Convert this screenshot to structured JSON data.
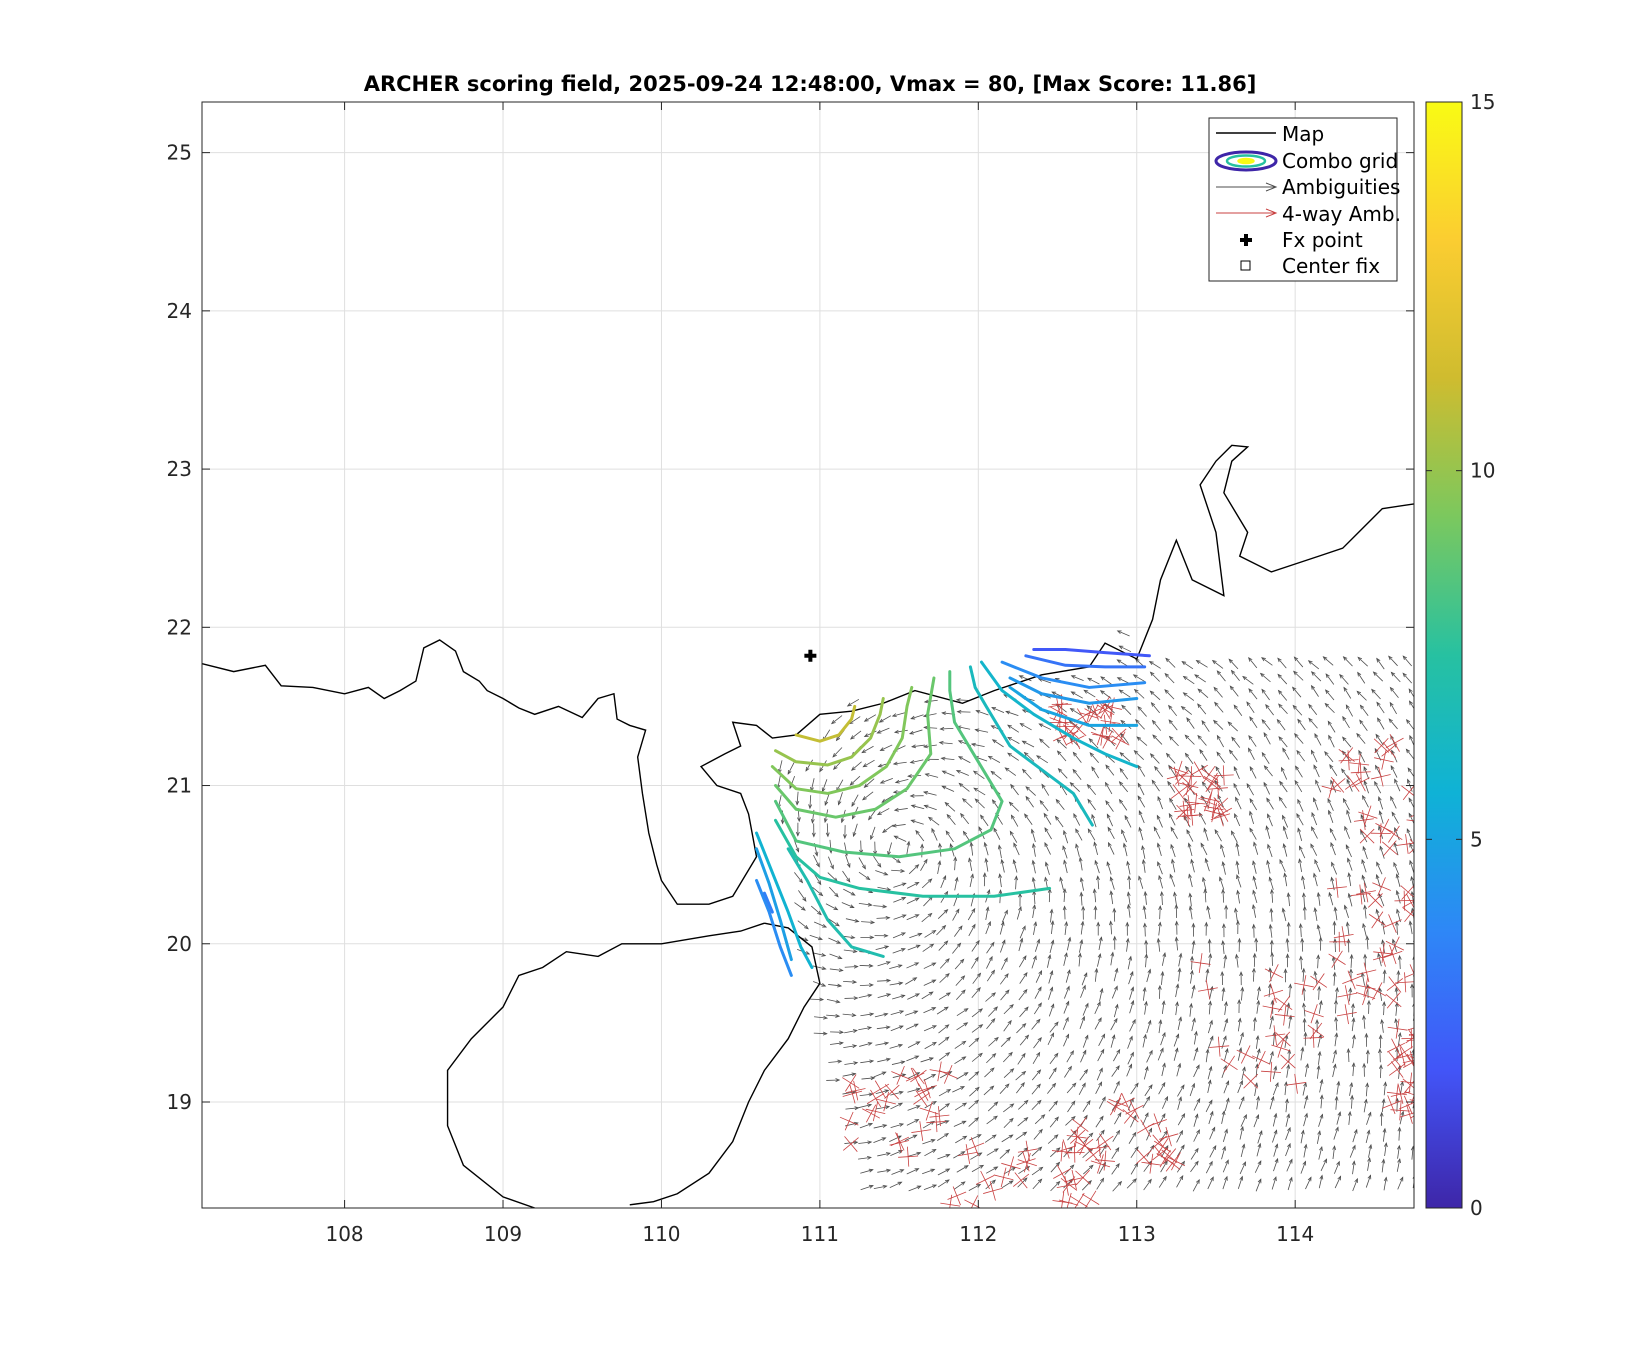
{
  "chart_data": {
    "type": "contour-map",
    "title": "ARCHER scoring field, 2025-09-24 12:48:00, Vmax = 80, [Max Score: 11.86]",
    "xlabel": "",
    "ylabel": "",
    "xlim": [
      107.1,
      114.75
    ],
    "ylim": [
      18.33,
      25.32
    ],
    "x_ticks": [
      108,
      109,
      110,
      111,
      112,
      113,
      114
    ],
    "y_ticks": [
      19,
      20,
      21,
      22,
      23,
      24,
      25
    ],
    "grid": true,
    "colorbar": {
      "range": [
        0,
        15
      ],
      "ticks": [
        0,
        5,
        10,
        15
      ],
      "colormap": [
        "#3e26a8",
        "#4255f8",
        "#2e87f7",
        "#0fb2d6",
        "#27c1a1",
        "#7bc85e",
        "#cfbc2f",
        "#fbcd31",
        "#f9fb14"
      ]
    },
    "legend": {
      "placement": "top-right",
      "entries": [
        {
          "label": "Map",
          "symbol": "line",
          "color": "#000000"
        },
        {
          "label": "Combo grid",
          "symbol": "contour",
          "color": "#3e26a8"
        },
        {
          "label": "Ambiguities",
          "symbol": "arrow",
          "color": "#555555"
        },
        {
          "label": "4-way Amb.",
          "symbol": "arrow",
          "color": "#cc3333"
        },
        {
          "label": "Fx point",
          "symbol": "plus",
          "color": "#000000"
        },
        {
          "label": "Center fix",
          "symbol": "square",
          "color": "#000000"
        }
      ]
    },
    "fx_point": {
      "lon": 110.94,
      "lat": 21.82
    },
    "coastlines": [
      [
        [
          107.1,
          21.77
        ],
        [
          107.3,
          21.72
        ],
        [
          107.5,
          21.76
        ],
        [
          107.6,
          21.63
        ],
        [
          107.8,
          21.62
        ],
        [
          108.0,
          21.58
        ],
        [
          108.15,
          21.62
        ],
        [
          108.25,
          21.55
        ],
        [
          108.35,
          21.6
        ],
        [
          108.45,
          21.66
        ],
        [
          108.5,
          21.87
        ],
        [
          108.6,
          21.92
        ],
        [
          108.7,
          21.85
        ],
        [
          108.75,
          21.72
        ],
        [
          108.85,
          21.66
        ],
        [
          108.9,
          21.6
        ],
        [
          109.0,
          21.55
        ],
        [
          109.1,
          21.49
        ],
        [
          109.2,
          21.45
        ],
        [
          109.35,
          21.5
        ],
        [
          109.5,
          21.43
        ],
        [
          109.6,
          21.55
        ],
        [
          109.7,
          21.58
        ],
        [
          109.72,
          21.42
        ],
        [
          109.8,
          21.38
        ],
        [
          109.9,
          21.35
        ],
        [
          109.85,
          21.18
        ],
        [
          109.88,
          20.95
        ],
        [
          109.92,
          20.7
        ],
        [
          109.97,
          20.5
        ],
        [
          110.0,
          20.4
        ],
        [
          110.1,
          20.25
        ],
        [
          110.3,
          20.25
        ],
        [
          110.45,
          20.3
        ],
        [
          110.6,
          20.55
        ],
        [
          110.55,
          20.82
        ],
        [
          110.5,
          20.95
        ],
        [
          110.35,
          21.0
        ],
        [
          110.25,
          21.12
        ],
        [
          110.4,
          21.2
        ],
        [
          110.5,
          21.25
        ],
        [
          110.45,
          21.4
        ],
        [
          110.6,
          21.38
        ],
        [
          110.7,
          21.3
        ],
        [
          110.85,
          21.32
        ],
        [
          111.0,
          21.45
        ],
        [
          111.2,
          21.47
        ],
        [
          111.4,
          21.52
        ],
        [
          111.6,
          21.6
        ],
        [
          111.9,
          21.52
        ],
        [
          112.1,
          21.6
        ],
        [
          112.4,
          21.7
        ],
        [
          112.7,
          21.75
        ],
        [
          112.8,
          21.9
        ],
        [
          113.0,
          21.8
        ],
        [
          113.1,
          22.05
        ],
        [
          113.15,
          22.3
        ],
        [
          113.25,
          22.55
        ],
        [
          113.35,
          22.3
        ],
        [
          113.55,
          22.2
        ],
        [
          113.5,
          22.6
        ],
        [
          113.4,
          22.9
        ],
        [
          113.5,
          23.05
        ],
        [
          113.6,
          23.15
        ],
        [
          113.7,
          23.14
        ],
        [
          113.6,
          23.05
        ],
        [
          113.55,
          22.85
        ],
        [
          113.7,
          22.6
        ],
        [
          113.65,
          22.45
        ],
        [
          113.85,
          22.35
        ],
        [
          114.0,
          22.4
        ],
        [
          114.15,
          22.45
        ],
        [
          114.3,
          22.5
        ],
        [
          114.4,
          22.6
        ],
        [
          114.55,
          22.75
        ],
        [
          114.75,
          22.78
        ]
      ],
      [
        [
          110.65,
          20.13
        ],
        [
          110.5,
          20.08
        ],
        [
          110.3,
          20.05
        ],
        [
          110.0,
          20.0
        ],
        [
          109.75,
          20.0
        ],
        [
          109.6,
          19.92
        ],
        [
          109.4,
          19.95
        ],
        [
          109.25,
          19.85
        ],
        [
          109.1,
          19.8
        ],
        [
          109.0,
          19.6
        ],
        [
          108.8,
          19.4
        ],
        [
          108.65,
          19.2
        ],
        [
          108.65,
          18.85
        ],
        [
          108.75,
          18.6
        ],
        [
          109.0,
          18.4
        ],
        [
          109.2,
          18.33
        ]
      ],
      [
        [
          110.65,
          20.13
        ],
        [
          110.8,
          20.1
        ],
        [
          110.95,
          19.98
        ],
        [
          111.0,
          19.75
        ],
        [
          110.9,
          19.6
        ],
        [
          110.8,
          19.4
        ],
        [
          110.65,
          19.2
        ],
        [
          110.55,
          19.0
        ],
        [
          110.45,
          18.75
        ],
        [
          110.3,
          18.55
        ],
        [
          110.1,
          18.42
        ],
        [
          109.95,
          18.37
        ],
        [
          109.8,
          18.35
        ]
      ]
    ],
    "contours": [
      {
        "level": 11.0,
        "points": [
          [
            110.85,
            21.32
          ],
          [
            111.0,
            21.28
          ],
          [
            111.12,
            21.32
          ],
          [
            111.2,
            21.42
          ],
          [
            111.22,
            21.5
          ]
        ]
      },
      {
        "level": 10.0,
        "points": [
          [
            110.72,
            21.22
          ],
          [
            110.85,
            21.15
          ],
          [
            111.05,
            21.13
          ],
          [
            111.2,
            21.18
          ],
          [
            111.32,
            21.3
          ],
          [
            111.38,
            21.45
          ],
          [
            111.4,
            21.55
          ]
        ]
      },
      {
        "level": 9.5,
        "points": [
          [
            110.7,
            21.12
          ],
          [
            110.85,
            20.98
          ],
          [
            111.05,
            20.95
          ],
          [
            111.25,
            21.0
          ],
          [
            111.42,
            21.12
          ],
          [
            111.52,
            21.3
          ],
          [
            111.55,
            21.5
          ],
          [
            111.58,
            21.62
          ]
        ]
      },
      {
        "level": 9.0,
        "points": [
          [
            110.72,
            21.0
          ],
          [
            110.85,
            20.85
          ],
          [
            111.1,
            20.8
          ],
          [
            111.35,
            20.85
          ],
          [
            111.55,
            20.98
          ],
          [
            111.7,
            21.2
          ],
          [
            111.68,
            21.45
          ],
          [
            111.72,
            21.68
          ]
        ]
      },
      {
        "level": 8.5,
        "points": [
          [
            110.72,
            20.9
          ],
          [
            110.85,
            20.65
          ],
          [
            111.15,
            20.58
          ],
          [
            111.5,
            20.55
          ],
          [
            111.85,
            20.6
          ],
          [
            112.08,
            20.72
          ],
          [
            112.15,
            20.9
          ],
          [
            112.0,
            21.15
          ],
          [
            111.85,
            21.4
          ],
          [
            111.82,
            21.6
          ],
          [
            111.82,
            21.72
          ]
        ]
      },
      {
        "level": 7.5,
        "points": [
          [
            110.72,
            20.78
          ],
          [
            110.85,
            20.55
          ],
          [
            111.0,
            20.42
          ],
          [
            111.25,
            20.35
          ],
          [
            111.65,
            20.3
          ],
          [
            112.1,
            20.3
          ],
          [
            112.45,
            20.35
          ]
        ]
      },
      {
        "level": 7.0,
        "points": [
          [
            110.8,
            20.6
          ],
          [
            110.92,
            20.4
          ],
          [
            111.05,
            20.15
          ],
          [
            111.2,
            19.98
          ],
          [
            111.4,
            19.92
          ]
        ]
      },
      {
        "level": 6.5,
        "points": [
          [
            112.72,
            20.75
          ],
          [
            112.6,
            20.95
          ],
          [
            112.4,
            21.1
          ],
          [
            112.2,
            21.25
          ],
          [
            112.05,
            21.5
          ],
          [
            111.98,
            21.62
          ],
          [
            111.95,
            21.75
          ]
        ]
      },
      {
        "level": 6.0,
        "points": [
          [
            113.0,
            21.12
          ],
          [
            112.8,
            21.2
          ],
          [
            112.6,
            21.3
          ],
          [
            112.35,
            21.45
          ],
          [
            112.15,
            21.6
          ],
          [
            112.02,
            21.78
          ]
        ]
      },
      {
        "level": 5.0,
        "points": [
          [
            113.0,
            21.38
          ],
          [
            112.7,
            21.38
          ],
          [
            112.4,
            21.48
          ],
          [
            112.2,
            21.62
          ]
        ]
      },
      {
        "level": 4.5,
        "points": [
          [
            113.0,
            21.55
          ],
          [
            112.7,
            21.52
          ],
          [
            112.4,
            21.58
          ],
          [
            112.2,
            21.68
          ]
        ]
      },
      {
        "level": 4.0,
        "points": [
          [
            113.05,
            21.65
          ],
          [
            112.7,
            21.62
          ],
          [
            112.4,
            21.68
          ],
          [
            112.15,
            21.78
          ]
        ]
      },
      {
        "level": 3.0,
        "points": [
          [
            113.05,
            21.75
          ],
          [
            112.8,
            21.75
          ],
          [
            112.55,
            21.76
          ],
          [
            112.3,
            21.82
          ]
        ]
      },
      {
        "level": 2.0,
        "points": [
          [
            113.08,
            21.82
          ],
          [
            112.8,
            21.84
          ],
          [
            112.55,
            21.86
          ],
          [
            112.35,
            21.86
          ]
        ]
      },
      {
        "level": 5.8,
        "points": [
          [
            110.6,
            20.7
          ],
          [
            110.7,
            20.45
          ],
          [
            110.8,
            20.2
          ],
          [
            110.88,
            19.98
          ],
          [
            110.95,
            19.85
          ]
        ]
      },
      {
        "level": 4.8,
        "points": [
          [
            110.6,
            20.6
          ],
          [
            110.68,
            20.38
          ],
          [
            110.75,
            20.15
          ],
          [
            110.82,
            19.9
          ]
        ]
      },
      {
        "level": 4.0,
        "points": [
          [
            110.6,
            20.4
          ],
          [
            110.68,
            20.2
          ],
          [
            110.75,
            19.98
          ],
          [
            110.82,
            19.8
          ]
        ]
      },
      {
        "level": 3.5,
        "points": [
          [
            110.65,
            20.32
          ],
          [
            110.7,
            20.2
          ]
        ]
      }
    ]
  }
}
